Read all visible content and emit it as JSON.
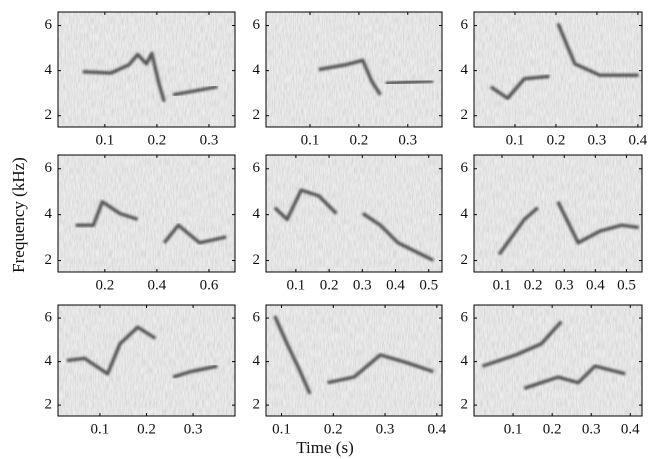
{
  "x_label": "Time (s)",
  "y_label": "Frequency (kHz)",
  "chart_data": [
    {
      "type": "spectrogram",
      "xlim": [
        0.01,
        0.35
      ],
      "ylim": [
        1.5,
        6.6
      ],
      "xticks": [
        0.1,
        0.2,
        0.3
      ],
      "yticks": [
        2,
        4,
        6
      ]
    },
    {
      "type": "spectrogram",
      "xlim": [
        0.01,
        0.37
      ],
      "ylim": [
        1.5,
        6.6
      ],
      "xticks": [
        0.1,
        0.2,
        0.3
      ],
      "yticks": [
        2,
        4,
        6
      ]
    },
    {
      "type": "spectrogram",
      "xlim": [
        0,
        0.41
      ],
      "ylim": [
        1.5,
        6.6
      ],
      "xticks": [
        0.1,
        0.2,
        0.3,
        0.4
      ],
      "yticks": [
        2,
        4,
        6
      ]
    },
    {
      "type": "spectrogram",
      "xlim": [
        0.02,
        0.7
      ],
      "ylim": [
        1.5,
        6.6
      ],
      "xticks": [
        0.2,
        0.4,
        0.6
      ],
      "yticks": [
        2,
        4,
        6
      ]
    },
    {
      "type": "spectrogram",
      "xlim": [
        0.01,
        0.54
      ],
      "ylim": [
        1.5,
        6.6
      ],
      "xticks": [
        0.1,
        0.2,
        0.3,
        0.4,
        0.5
      ],
      "yticks": [
        2,
        4,
        6
      ]
    },
    {
      "type": "spectrogram",
      "xlim": [
        0.01,
        0.55
      ],
      "ylim": [
        1.5,
        6.6
      ],
      "xticks": [
        0.1,
        0.2,
        0.3,
        0.4,
        0.5
      ],
      "yticks": [
        2,
        4,
        6
      ]
    },
    {
      "type": "spectrogram",
      "xlim": [
        0.01,
        0.39
      ],
      "ylim": [
        1.5,
        6.6
      ],
      "xticks": [
        0.1,
        0.2,
        0.3
      ],
      "yticks": [
        2,
        4,
        6
      ]
    },
    {
      "type": "spectrogram",
      "xlim": [
        0.07,
        0.41
      ],
      "ylim": [
        1.5,
        6.6
      ],
      "xticks": [
        0.1,
        0.2,
        0.3,
        0.4
      ],
      "yticks": [
        2,
        4,
        6
      ]
    },
    {
      "type": "spectrogram",
      "xlim": [
        0,
        0.43
      ],
      "ylim": [
        1.5,
        6.6
      ],
      "xticks": [
        0.1,
        0.2,
        0.3,
        0.4
      ],
      "yticks": [
        2,
        4,
        6
      ]
    }
  ]
}
